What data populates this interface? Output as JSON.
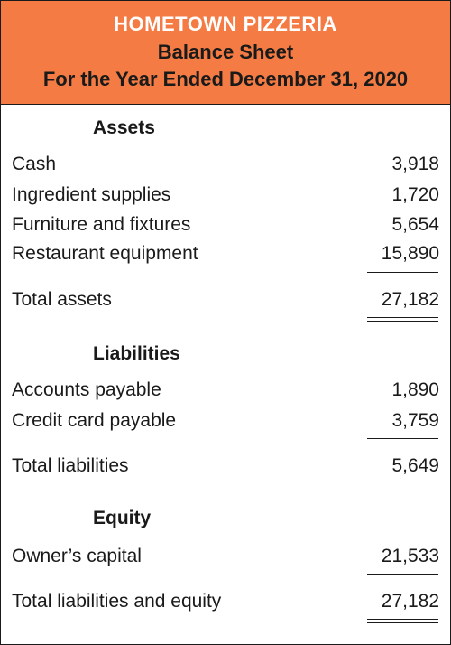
{
  "header": {
    "company": "HOMETOWN PIZZERIA",
    "document": "Balance Sheet",
    "period": "For the Year Ended December 31, 2020"
  },
  "assets": {
    "heading": "Assets",
    "items": [
      {
        "label": "Cash",
        "amount": "3,918"
      },
      {
        "label": "Ingredient supplies",
        "amount": "1,720"
      },
      {
        "label": "Furniture and fixtures",
        "amount": "5,654"
      },
      {
        "label": "Restaurant equipment",
        "amount": "15,890"
      }
    ],
    "total": {
      "label": "Total assets",
      "amount": "27,182"
    }
  },
  "liabilities": {
    "heading": "Liabilities",
    "items": [
      {
        "label": "Accounts payable",
        "amount": "1,890"
      },
      {
        "label": "Credit card payable",
        "amount": "3,759"
      }
    ],
    "total": {
      "label": "Total liabilities",
      "amount": "5,649"
    }
  },
  "equity": {
    "heading": "Equity",
    "items": [
      {
        "label": "Owner’s capital",
        "amount": "21,533"
      }
    ],
    "total": {
      "label": "Total liabilities and equity",
      "amount": "27,182"
    }
  },
  "colors": {
    "header_bg": "#f47c44",
    "header_title": "#ffffff",
    "text": "#1a1a1a"
  }
}
